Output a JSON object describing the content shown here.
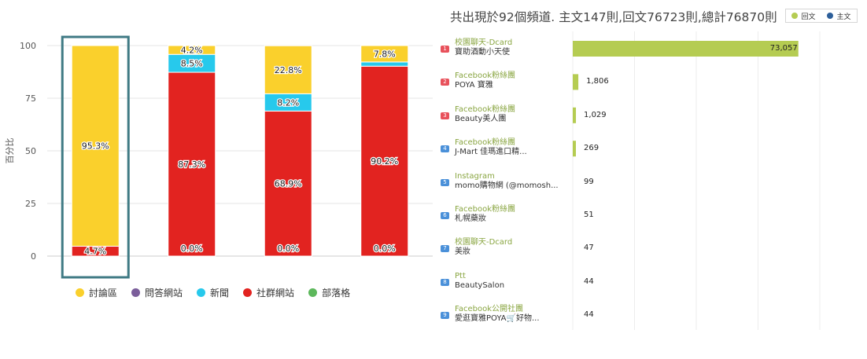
{
  "chart_data": [
    {
      "type": "bar",
      "stacked": true,
      "title": "",
      "ylabel": "百分比",
      "ylim": [
        0,
        100
      ],
      "yticks": [
        0,
        25,
        50,
        75,
        100
      ],
      "categories": [
        "",
        "",
        "",
        ""
      ],
      "series": [
        {
          "name": "討論區",
          "color": "#fad02c",
          "values": [
            95.3,
            4.2,
            22.8,
            7.8
          ]
        },
        {
          "name": "問答網站",
          "color": "#7b5e9b",
          "values": [
            0,
            0,
            0,
            0
          ]
        },
        {
          "name": "新聞",
          "color": "#27c9ec",
          "values": [
            0,
            8.5,
            8.2,
            2.0
          ]
        },
        {
          "name": "社群網站",
          "color": "#e22320",
          "values": [
            4.7,
            87.3,
            68.9,
            90.2
          ]
        },
        {
          "name": "部落格",
          "color": "#5db85c",
          "values": [
            0,
            0,
            0,
            0
          ]
        }
      ],
      "data_labels": [
        [
          {
            "series": "討論區",
            "text": "95.3%"
          },
          {
            "series": "社群網站",
            "text": "4.7%"
          }
        ],
        [
          {
            "series": "討論區",
            "text": "4.2%"
          },
          {
            "series": "新聞",
            "text": "8.5%"
          },
          {
            "series": "社群網站",
            "text": "87.3%"
          },
          {
            "series": "社群網站",
            "text": "0.0%",
            "at_base": true
          }
        ],
        [
          {
            "series": "討論區",
            "text": "22.8%"
          },
          {
            "series": "新聞",
            "text": "8.2%"
          },
          {
            "series": "社群網站",
            "text": "68.9%"
          },
          {
            "series": "社群網站",
            "text": "0.0%",
            "at_base": true
          }
        ],
        [
          {
            "series": "討論區",
            "text": "7.8%"
          },
          {
            "series": "社群網站",
            "text": "90.2%"
          },
          {
            "series": "社群網站",
            "text": "0.0%",
            "at_base": true
          }
        ]
      ],
      "highlighted_category_index": 0,
      "legend_position": "bottom"
    },
    {
      "type": "bar",
      "orientation": "horizontal",
      "title": "共出現於92個頻道. 主文147則,回文76723則,總計76870則",
      "legend_position": "top-right",
      "series_legend": [
        {
          "name": "回文",
          "color": "#b5cc52"
        },
        {
          "name": "主文",
          "color": "#2d5f9a"
        }
      ],
      "rows": [
        {
          "rank": "1",
          "source": "校園聊天-Dcard",
          "name": "寶助酒動小天使",
          "value": 73057,
          "label": "73,057"
        },
        {
          "rank": "2",
          "source": "Facebook粉絲團",
          "name": "POYA 寶雅",
          "value": 1806,
          "label": "1,806"
        },
        {
          "rank": "3",
          "source": "Facebook粉絲團",
          "name": "Beauty美人團",
          "value": 1029,
          "label": "1,029"
        },
        {
          "rank": "4",
          "source": "Facebook粉絲團",
          "name": "J-Mart 佳瑪進口精...",
          "value": 269,
          "label": "269"
        },
        {
          "rank": "5",
          "source": "Instagram",
          "name": "momo購物網 (@momosh...",
          "value": 99,
          "label": "99"
        },
        {
          "rank": "6",
          "source": "Facebook粉絲團",
          "name": "札幌藥妝",
          "value": 51,
          "label": "51"
        },
        {
          "rank": "7",
          "source": "校園聊天-Dcard",
          "name": "美妝",
          "value": 47,
          "label": "47"
        },
        {
          "rank": "8",
          "source": "Ptt",
          "name": "BeautySalon",
          "value": 44,
          "label": "44"
        },
        {
          "rank": "9",
          "source": "Facebook公開社團",
          "name": "愛逛寶雅POYA🛒好物...",
          "value": 44,
          "label": "44"
        }
      ],
      "badge_colors": [
        "#e8515b",
        "#e8515b",
        "#e8515b",
        "#4a90d9",
        "#4a90d9",
        "#4a90d9",
        "#4a90d9",
        "#4a90d9",
        "#4a90d9"
      ],
      "xlim": [
        0,
        80000
      ]
    }
  ]
}
